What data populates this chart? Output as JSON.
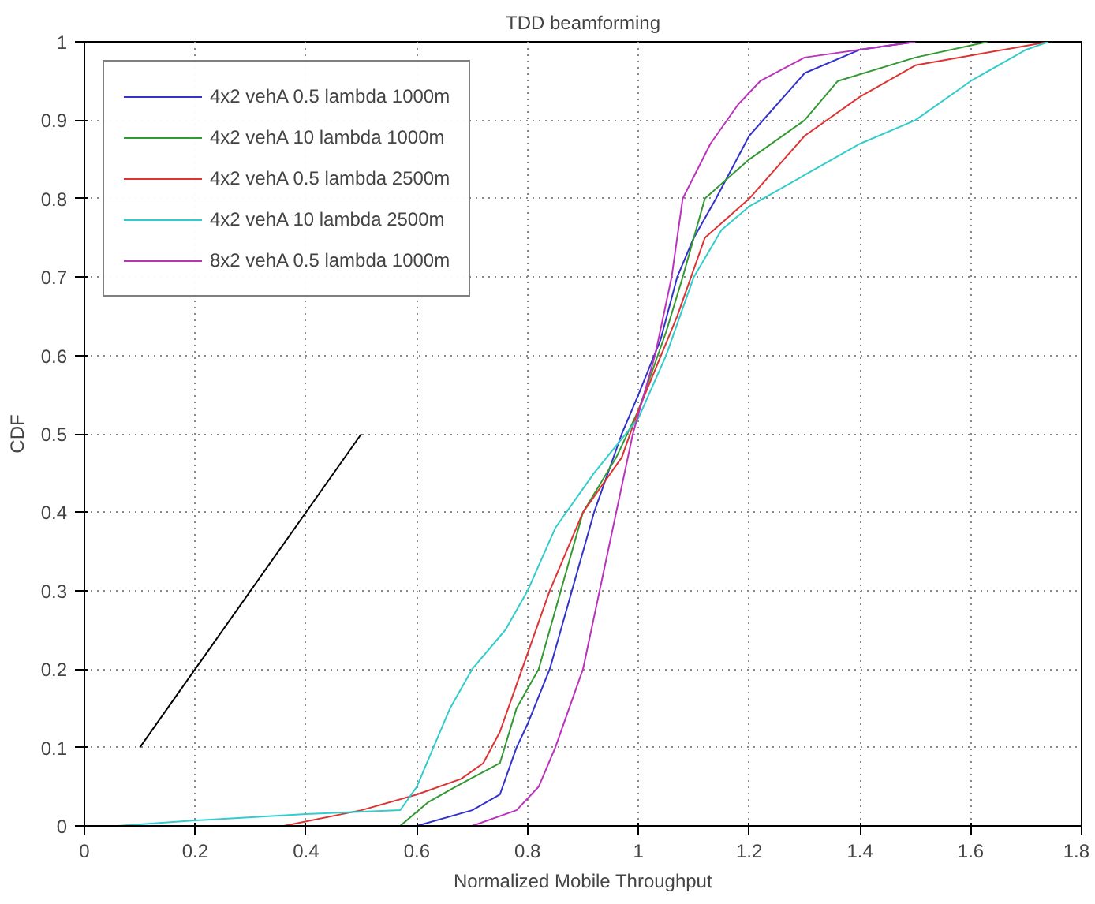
{
  "chart_data": {
    "type": "line",
    "title": "TDD beamforming",
    "xlabel": "Normalized Mobile Throughput",
    "ylabel": "CDF",
    "xlim": [
      0,
      1.8
    ],
    "ylim": [
      0,
      1
    ],
    "xticks": [
      0,
      0.2,
      0.4,
      0.6,
      0.8,
      1,
      1.2,
      1.4,
      1.6,
      1.8
    ],
    "yticks": [
      0,
      0.1,
      0.2,
      0.3,
      0.4,
      0.5,
      0.6,
      0.7,
      0.8,
      0.9,
      1
    ],
    "grid": true,
    "legend": "top left",
    "series": [
      {
        "name": "4x2 vehA 0.5 lambda 1000m",
        "color": "#3333cc",
        "x": [
          0.6,
          0.7,
          0.75,
          0.78,
          0.8,
          0.84,
          0.88,
          0.92,
          0.97,
          1.0,
          1.04,
          1.07,
          1.1,
          1.14,
          1.2,
          1.3,
          1.4,
          1.5
        ],
        "values": [
          0,
          0.02,
          0.04,
          0.1,
          0.13,
          0.2,
          0.3,
          0.4,
          0.5,
          0.55,
          0.62,
          0.7,
          0.75,
          0.8,
          0.88,
          0.96,
          0.99,
          1.0
        ]
      },
      {
        "name": "4x2 vehA 10 lambda 1000m",
        "color": "#339933",
        "x": [
          0.57,
          0.62,
          0.67,
          0.75,
          0.78,
          0.82,
          0.86,
          0.9,
          0.96,
          1.0,
          1.05,
          1.08,
          1.12,
          1.2,
          1.3,
          1.36,
          1.5,
          1.63
        ],
        "values": [
          0,
          0.03,
          0.05,
          0.08,
          0.15,
          0.2,
          0.3,
          0.4,
          0.47,
          0.53,
          0.63,
          0.7,
          0.8,
          0.85,
          0.9,
          0.95,
          0.98,
          1.0
        ]
      },
      {
        "name": "4x2 vehA 0.5 lambda 2500m",
        "color": "#dd3333",
        "x": [
          0.36,
          0.5,
          0.6,
          0.68,
          0.72,
          0.75,
          0.78,
          0.8,
          0.84,
          0.9,
          0.97,
          1.0,
          1.07,
          1.12,
          1.2,
          1.3,
          1.4,
          1.5,
          1.74
        ],
        "values": [
          0,
          0.02,
          0.04,
          0.06,
          0.08,
          0.12,
          0.18,
          0.22,
          0.3,
          0.4,
          0.47,
          0.53,
          0.65,
          0.75,
          0.8,
          0.88,
          0.93,
          0.97,
          1.0
        ]
      },
      {
        "name": "4x2 vehA 10 lambda 2500m",
        "color": "#33cccc",
        "x": [
          0.06,
          0.2,
          0.4,
          0.57,
          0.6,
          0.63,
          0.66,
          0.7,
          0.76,
          0.8,
          0.85,
          0.92,
          1.0,
          1.05,
          1.1,
          1.15,
          1.2,
          1.3,
          1.4,
          1.5,
          1.6,
          1.7,
          1.74
        ],
        "values": [
          0,
          0.007,
          0.015,
          0.02,
          0.05,
          0.1,
          0.15,
          0.2,
          0.25,
          0.3,
          0.38,
          0.45,
          0.52,
          0.6,
          0.7,
          0.76,
          0.79,
          0.83,
          0.87,
          0.9,
          0.95,
          0.99,
          1.0
        ]
      },
      {
        "name": "8x2 vehA 0.5 lambda 1000m",
        "color": "#bb33bb",
        "x": [
          0.7,
          0.78,
          0.82,
          0.85,
          0.9,
          0.93,
          0.96,
          0.99,
          1.03,
          1.06,
          1.08,
          1.13,
          1.18,
          1.22,
          1.3,
          1.5
        ],
        "values": [
          0,
          0.02,
          0.05,
          0.1,
          0.2,
          0.3,
          0.4,
          0.5,
          0.6,
          0.7,
          0.8,
          0.87,
          0.92,
          0.95,
          0.98,
          1.0
        ]
      },
      {
        "color": "#000000",
        "x": [
          0.1,
          0.5
        ],
        "values": [
          0.1,
          0.5
        ]
      }
    ]
  }
}
